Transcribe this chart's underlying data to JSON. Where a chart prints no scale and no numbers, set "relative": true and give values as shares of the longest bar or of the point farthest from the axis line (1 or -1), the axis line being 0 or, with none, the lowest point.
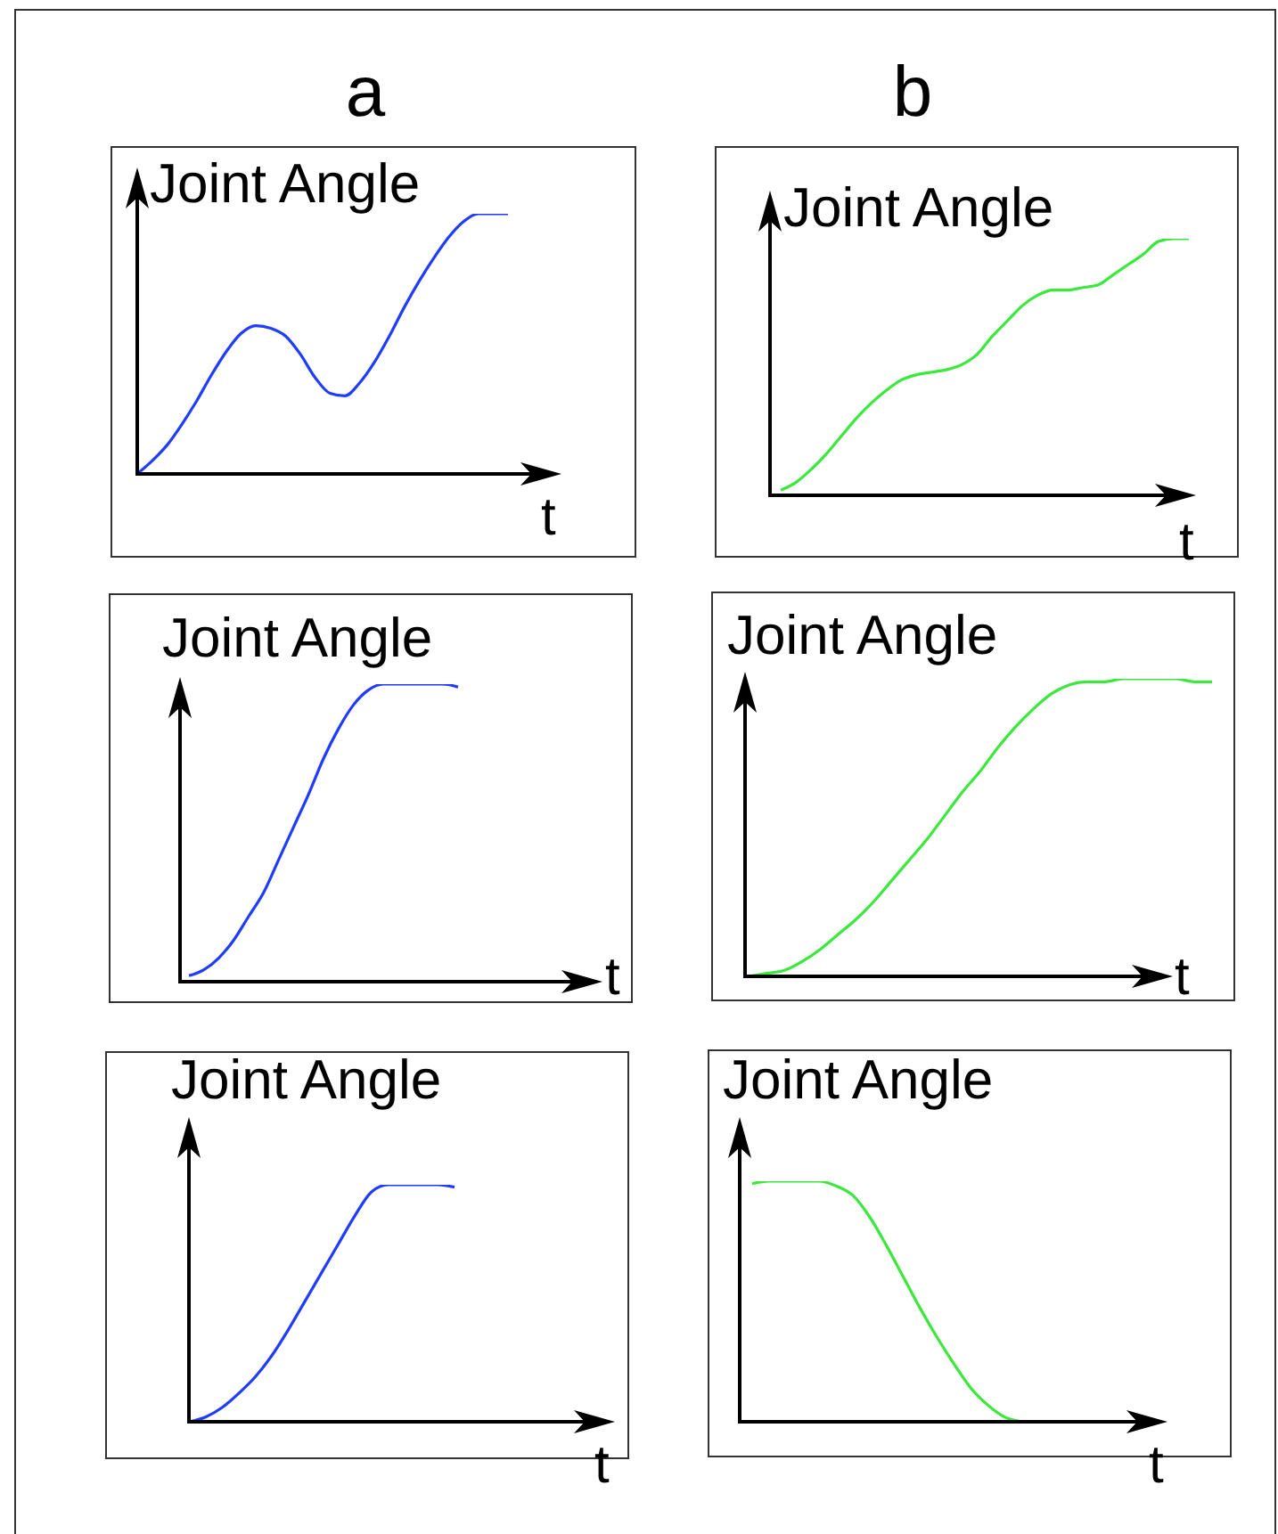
{
  "chart_data": [
    {
      "type": "line",
      "title": "a",
      "xlabel": "t",
      "ylabel": "Joint Angle",
      "relative": true,
      "marker": "none",
      "color": "#1f3cff",
      "categories": [
        null,
        null,
        null,
        null,
        null,
        null,
        null,
        null,
        null,
        null,
        null,
        null,
        null,
        null,
        null,
        null,
        null,
        null,
        null,
        null,
        null,
        null,
        null,
        null,
        null,
        null
      ],
      "values": [
        0,
        0.05,
        0.11,
        0.19,
        0.28,
        0.38,
        0.47,
        0.54,
        0.57,
        0.56,
        0.53,
        0.46,
        0.37,
        0.31,
        0.3,
        0.35,
        0.43,
        0.53,
        0.64,
        0.74,
        0.83,
        0.91,
        0.97,
        1,
        1,
        1
      ]
    },
    {
      "type": "line",
      "title": "b",
      "xlabel": "t",
      "ylabel": "Joint Angle",
      "relative": true,
      "marker": "none",
      "color": "#3ce83c",
      "categories": [
        null,
        null,
        null,
        null,
        null,
        null,
        null,
        null,
        null,
        null,
        null,
        null,
        null,
        null,
        null,
        null,
        null,
        null,
        null,
        null,
        null,
        null,
        null,
        null,
        null,
        null,
        null,
        null
      ],
      "values": [
        0.02,
        0.05,
        0.1,
        0.16,
        0.23,
        0.3,
        0.36,
        0.41,
        0.45,
        0.47,
        0.48,
        0.49,
        0.51,
        0.55,
        0.62,
        0.68,
        0.74,
        0.78,
        0.8,
        0.8,
        0.81,
        0.82,
        0.86,
        0.9,
        0.94,
        0.99,
        1,
        1
      ]
    },
    {
      "type": "line",
      "xlabel": "t",
      "ylabel": "Joint Angle",
      "relative": true,
      "marker": "none",
      "color": "#1f3cff",
      "categories": [
        null,
        null,
        null,
        null,
        null,
        null,
        null,
        null,
        null,
        null,
        null,
        null,
        null,
        null,
        null,
        null,
        null,
        null,
        null
      ],
      "values": [
        0.02,
        0.04,
        0.08,
        0.14,
        0.22,
        0.3,
        0.41,
        0.52,
        0.63,
        0.75,
        0.85,
        0.93,
        0.98,
        1,
        1,
        1,
        1,
        1,
        0.99
      ]
    },
    {
      "type": "line",
      "xlabel": "t",
      "ylabel": "Joint Angle",
      "relative": true,
      "marker": "none",
      "color": "#3ce83c",
      "categories": [
        null,
        null,
        null,
        null,
        null,
        null,
        null,
        null,
        null,
        null,
        null,
        null,
        null,
        null,
        null,
        null,
        null,
        null,
        null,
        null,
        null,
        null,
        null,
        null,
        null,
        null,
        null
      ],
      "values": [
        0,
        0.01,
        0.02,
        0.05,
        0.09,
        0.14,
        0.19,
        0.25,
        0.32,
        0.39,
        0.46,
        0.54,
        0.62,
        0.69,
        0.77,
        0.84,
        0.9,
        0.95,
        0.98,
        0.99,
        0.99,
        1,
        1,
        1,
        1,
        0.99,
        0.99
      ]
    },
    {
      "type": "line",
      "xlabel": "t",
      "ylabel": "Joint Angle",
      "relative": true,
      "marker": "none",
      "color": "#1f3cff",
      "categories": [
        null,
        null,
        null,
        null,
        null,
        null,
        null,
        null,
        null,
        null,
        null,
        null,
        null,
        null,
        null,
        null,
        null
      ],
      "values": [
        0,
        0.02,
        0.06,
        0.12,
        0.19,
        0.28,
        0.39,
        0.51,
        0.63,
        0.75,
        0.87,
        0.97,
        1,
        1,
        1,
        1,
        0.99
      ]
    },
    {
      "type": "line",
      "xlabel": "t",
      "ylabel": "Joint Angle",
      "relative": true,
      "marker": "none",
      "color": "#3ce83c",
      "categories": [
        null,
        null,
        null,
        null,
        null,
        null,
        null,
        null,
        null,
        null,
        null,
        null,
        null,
        null,
        null,
        null,
        null
      ],
      "values": [
        0.99,
        1,
        1,
        1,
        1,
        0.98,
        0.94,
        0.85,
        0.73,
        0.6,
        0.47,
        0.35,
        0.24,
        0.14,
        0.07,
        0.02,
        0
      ]
    }
  ]
}
